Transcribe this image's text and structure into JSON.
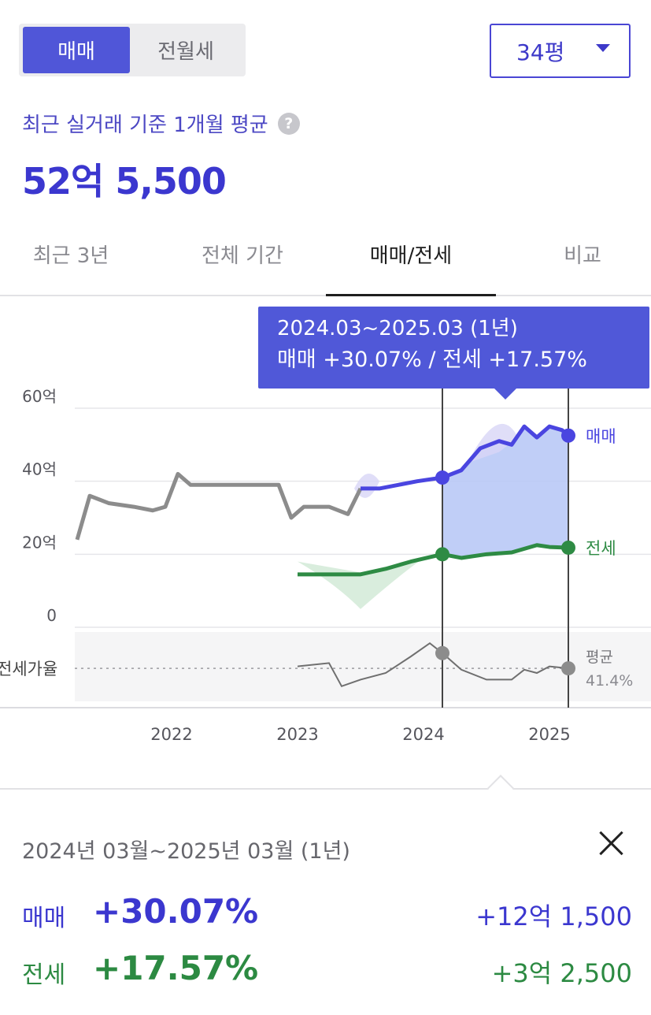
{
  "toggle": {
    "sale_label": "매매",
    "jeonse_label": "전월세"
  },
  "size_select": {
    "value": "34평"
  },
  "summary": {
    "label": "최근 실거래 기준 1개월 평균",
    "help_icon": "question-icon",
    "value": "52억 5,500"
  },
  "tabs": [
    {
      "label": "최근 3년",
      "active": false
    },
    {
      "label": "전체 기간",
      "active": false
    },
    {
      "label": "매매/전세",
      "active": true
    },
    {
      "label": "비교",
      "active": false
    }
  ],
  "tooltip": {
    "range": "2024.03~2025.03 (1년)",
    "detail": "매매 +30.07%  /  전세 +17.57%"
  },
  "chart_data": {
    "type": "line",
    "y_ticks": [
      "60억",
      "40억",
      "20억",
      "0"
    ],
    "ylim": [
      0,
      60
    ],
    "x_ticks": [
      "2022",
      "2023",
      "2024",
      "2025"
    ],
    "sub_label": "전세가율",
    "avg_label": "평균",
    "avg_value": "41.4%",
    "series": [
      {
        "name": "매매",
        "color": "#4a45e0",
        "x": [
          2021.25,
          2021.35,
          2021.5,
          2021.7,
          2021.85,
          2021.95,
          2022.05,
          2022.15,
          2022.3,
          2022.55,
          2022.85,
          2022.95,
          2023.05,
          2023.25,
          2023.4,
          2023.5,
          2023.65,
          2023.8,
          2023.95,
          2024.15,
          2024.3,
          2024.45,
          2024.6,
          2024.7,
          2024.8,
          2024.9,
          2025.0,
          2025.1,
          2025.15
        ],
        "values": [
          24,
          36,
          34,
          33,
          32,
          33,
          42,
          39,
          39,
          39,
          39,
          30,
          33,
          33,
          31,
          38,
          38,
          39,
          40,
          41,
          43,
          49,
          51,
          50,
          55,
          52,
          55,
          54,
          52.5
        ]
      },
      {
        "name": "전세",
        "color": "#2e8b44",
        "x": [
          2023.0,
          2023.3,
          2023.5,
          2023.7,
          2023.9,
          2024.15,
          2024.3,
          2024.5,
          2024.7,
          2024.9,
          2025.0,
          2025.15
        ],
        "values": [
          14.5,
          14.5,
          14.5,
          16,
          18,
          20,
          19,
          20,
          20.5,
          22.5,
          22,
          21.8
        ]
      }
    ],
    "ratio_series": {
      "x": [
        2023.0,
        2023.25,
        2023.35,
        2023.5,
        2023.7,
        2023.9,
        2024.05,
        2024.15,
        2024.3,
        2024.5,
        2024.7,
        2024.8,
        2024.9,
        2025.0,
        2025.15
      ],
      "values": [
        42,
        43,
        36,
        38,
        40,
        45,
        49,
        46,
        41,
        38,
        38,
        41,
        40,
        42,
        41.4
      ]
    },
    "highlight_range": [
      "2024.03",
      "2025.03"
    ]
  },
  "result": {
    "period": "2024년 03월~2025년 03월 (1년)",
    "sale": {
      "label": "매매",
      "pct": "+30.07%",
      "amount": "+12억 1,500"
    },
    "jeonse": {
      "label": "전세",
      "pct": "+17.57%",
      "amount": "+3억 2,500"
    }
  },
  "colors": {
    "accent": "#4a46d4",
    "sale": "#3b37cf",
    "jeonse": "#2c8a42",
    "past": "#8a8a8a"
  }
}
